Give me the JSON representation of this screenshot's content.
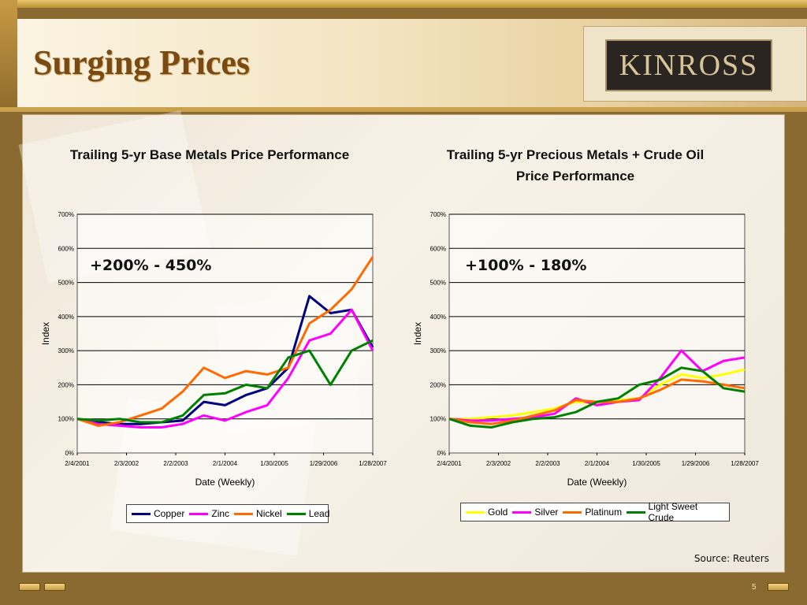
{
  "slide": {
    "title": "Surging Prices",
    "logo_text": "KINROSS",
    "source": "Source: Reuters",
    "page_number": "5",
    "colors": {
      "title": "#7a4a12",
      "accent": "#c9a04c"
    }
  },
  "chart_data": [
    {
      "type": "line",
      "title": "Trailing 5-yr Base Metals Price Performance",
      "xlabel": "Date (Weekly)",
      "ylabel": "Index",
      "ylim": [
        0,
        700
      ],
      "y_ticks": [
        "0%",
        "100%",
        "200%",
        "300%",
        "400%",
        "500%",
        "600%",
        "700%"
      ],
      "x_ticks": [
        "2/4/2001",
        "2/3/2002",
        "2/2/2003",
        "2/1/2004",
        "1/30/2005",
        "1/29/2006",
        "1/28/2007"
      ],
      "x": [
        "2/4/2001",
        "8/2001",
        "2/3/2002",
        "8/2002",
        "2/2/2003",
        "8/2003",
        "2/1/2004",
        "8/2004",
        "1/30/2005",
        "8/2005",
        "1/29/2006",
        "5/2006",
        "8/2006",
        "11/2006",
        "1/28/2007"
      ],
      "annotation": "+200% - 450%",
      "legend_position": "bottom",
      "grid": true,
      "series": [
        {
          "name": "Copper",
          "color": "#000080",
          "values": [
            100,
            90,
            85,
            85,
            90,
            95,
            150,
            140,
            170,
            190,
            250,
            460,
            410,
            420,
            310
          ]
        },
        {
          "name": "Zinc",
          "color": "#ff00ff",
          "values": [
            100,
            85,
            80,
            75,
            75,
            85,
            110,
            95,
            120,
            140,
            220,
            330,
            350,
            420,
            300
          ]
        },
        {
          "name": "Nickel",
          "color": "#ff6a00",
          "values": [
            100,
            80,
            90,
            110,
            130,
            180,
            250,
            220,
            240,
            230,
            250,
            380,
            420,
            480,
            575
          ]
        },
        {
          "name": "Lead",
          "color": "#008000",
          "values": [
            100,
            95,
            100,
            90,
            90,
            110,
            170,
            175,
            200,
            190,
            280,
            300,
            200,
            300,
            330
          ]
        }
      ]
    },
    {
      "type": "line",
      "title": "Trailing 5-yr Precious Metals + Crude Oil Price Performance",
      "xlabel": "Date (Weekly)",
      "ylabel": "Index",
      "ylim": [
        0,
        700
      ],
      "y_ticks": [
        "0%",
        "100%",
        "200%",
        "300%",
        "400%",
        "500%",
        "600%",
        "700%"
      ],
      "x_ticks": [
        "2/4/2001",
        "2/3/2002",
        "2/2/2003",
        "2/1/2004",
        "1/30/2005",
        "1/29/2006",
        "1/28/2007"
      ],
      "x": [
        "2/4/2001",
        "8/2001",
        "2/3/2002",
        "8/2002",
        "2/2/2003",
        "8/2003",
        "2/1/2004",
        "8/2004",
        "1/30/2005",
        "8/2005",
        "1/29/2006",
        "5/2006",
        "8/2006",
        "11/2006",
        "1/28/2007"
      ],
      "annotation": "+100% - 180%",
      "legend_position": "bottom",
      "grid": true,
      "series": [
        {
          "name": "Gold",
          "color": "#ffff00",
          "values": [
            100,
            100,
            105,
            110,
            120,
            130,
            150,
            145,
            155,
            160,
            200,
            230,
            220,
            230,
            245
          ]
        },
        {
          "name": "Silver",
          "color": "#ff00ff",
          "values": [
            100,
            95,
            95,
            100,
            105,
            115,
            160,
            140,
            150,
            155,
            220,
            300,
            240,
            270,
            280
          ]
        },
        {
          "name": "Platinum",
          "color": "#ff6a00",
          "values": [
            100,
            90,
            85,
            95,
            110,
            125,
            155,
            150,
            150,
            160,
            185,
            215,
            210,
            200,
            190
          ]
        },
        {
          "name": "Light Sweet Crude",
          "color": "#008000",
          "values": [
            100,
            80,
            75,
            90,
            100,
            105,
            120,
            150,
            160,
            200,
            215,
            250,
            240,
            190,
            180
          ]
        }
      ]
    }
  ]
}
